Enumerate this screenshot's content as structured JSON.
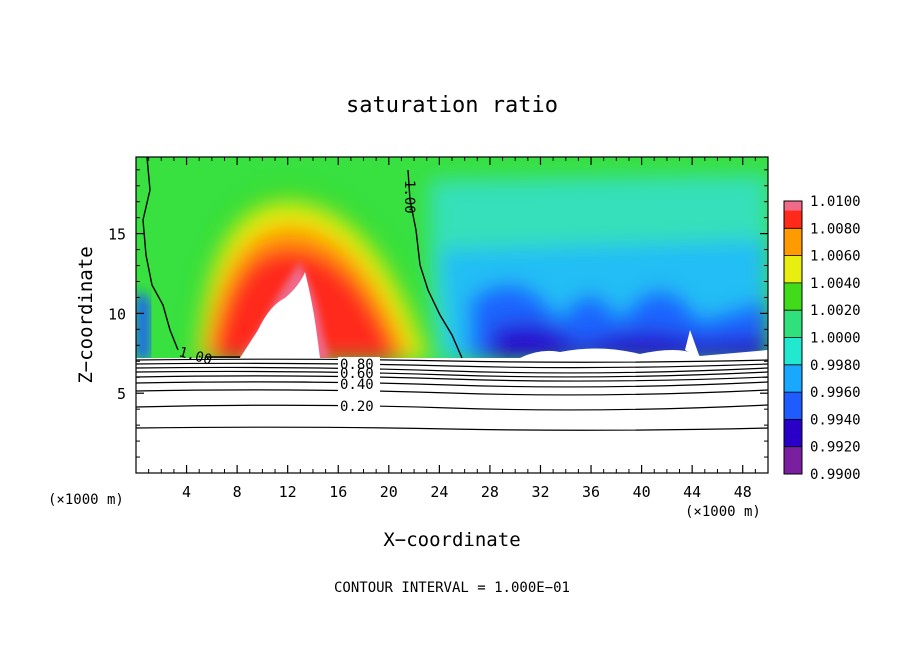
{
  "chart_data": {
    "type": "heatmap",
    "title": "saturation ratio",
    "xlabel": "X−coordinate",
    "ylabel": "Z−coordinate",
    "x_unit_left": "(×1000 m)",
    "x_unit_right": "(×1000 m)",
    "footer": "CONTOUR INTERVAL = 1.000E−01",
    "xlim": [
      0,
      50
    ],
    "ylim": [
      0,
      19.8
    ],
    "x_ticks": [
      4,
      8,
      12,
      16,
      20,
      24,
      28,
      32,
      36,
      40,
      44,
      48
    ],
    "x_tick_labels": [
      "4",
      "8",
      "12",
      "16",
      "20",
      "24",
      "28",
      "32",
      "36",
      "40",
      "44",
      "48"
    ],
    "y_ticks": [
      5,
      10,
      15
    ],
    "y_tick_labels": [
      "5",
      "10",
      "15"
    ],
    "colorbar": {
      "levels": [
        0.99,
        0.992,
        0.994,
        0.996,
        0.998,
        1.0,
        1.002,
        1.004,
        1.006,
        1.008,
        1.01
      ],
      "labels": [
        "0.9900",
        "0.9920",
        "0.9940",
        "0.9960",
        "0.9980",
        "1.0000",
        "1.0020",
        "1.0040",
        "1.0060",
        "1.0080",
        "1.0100"
      ],
      "colors": [
        "#7a1fa0",
        "#2a00c8",
        "#1e5cff",
        "#1aa8ff",
        "#22e8d0",
        "#30e07a",
        "#40dc1c",
        "#e8ee10",
        "#ff9a00",
        "#ff2a1a",
        "#f06a8a"
      ]
    },
    "contour_labels": [
      {
        "text": "1.00",
        "x": 2.4,
        "z": 7.6
      },
      {
        "text": "1.00",
        "x": 21.8,
        "z": 17.4
      },
      {
        "text": "0.80",
        "x": 19.0,
        "z": 6.8
      },
      {
        "text": "0.60",
        "x": 19.0,
        "z": 6.3
      },
      {
        "text": "0.40",
        "x": 19.0,
        "z": 5.7
      },
      {
        "text": "0.20",
        "x": 19.0,
        "z": 4.2
      }
    ],
    "contour_lines_below_cloud": [
      {
        "level": 0.2,
        "z": 4.3
      },
      {
        "level": 0.1,
        "z": 2.9
      },
      {
        "level": 0.4,
        "z": 5.6
      },
      {
        "level": 0.6,
        "z": 6.2
      },
      {
        "level": 0.8,
        "z": 6.6
      },
      {
        "level": 0.9,
        "z": 6.9
      },
      {
        "level": 0.95,
        "z": 7.1
      },
      {
        "level": 0.5,
        "z": 5.9
      }
    ]
  }
}
